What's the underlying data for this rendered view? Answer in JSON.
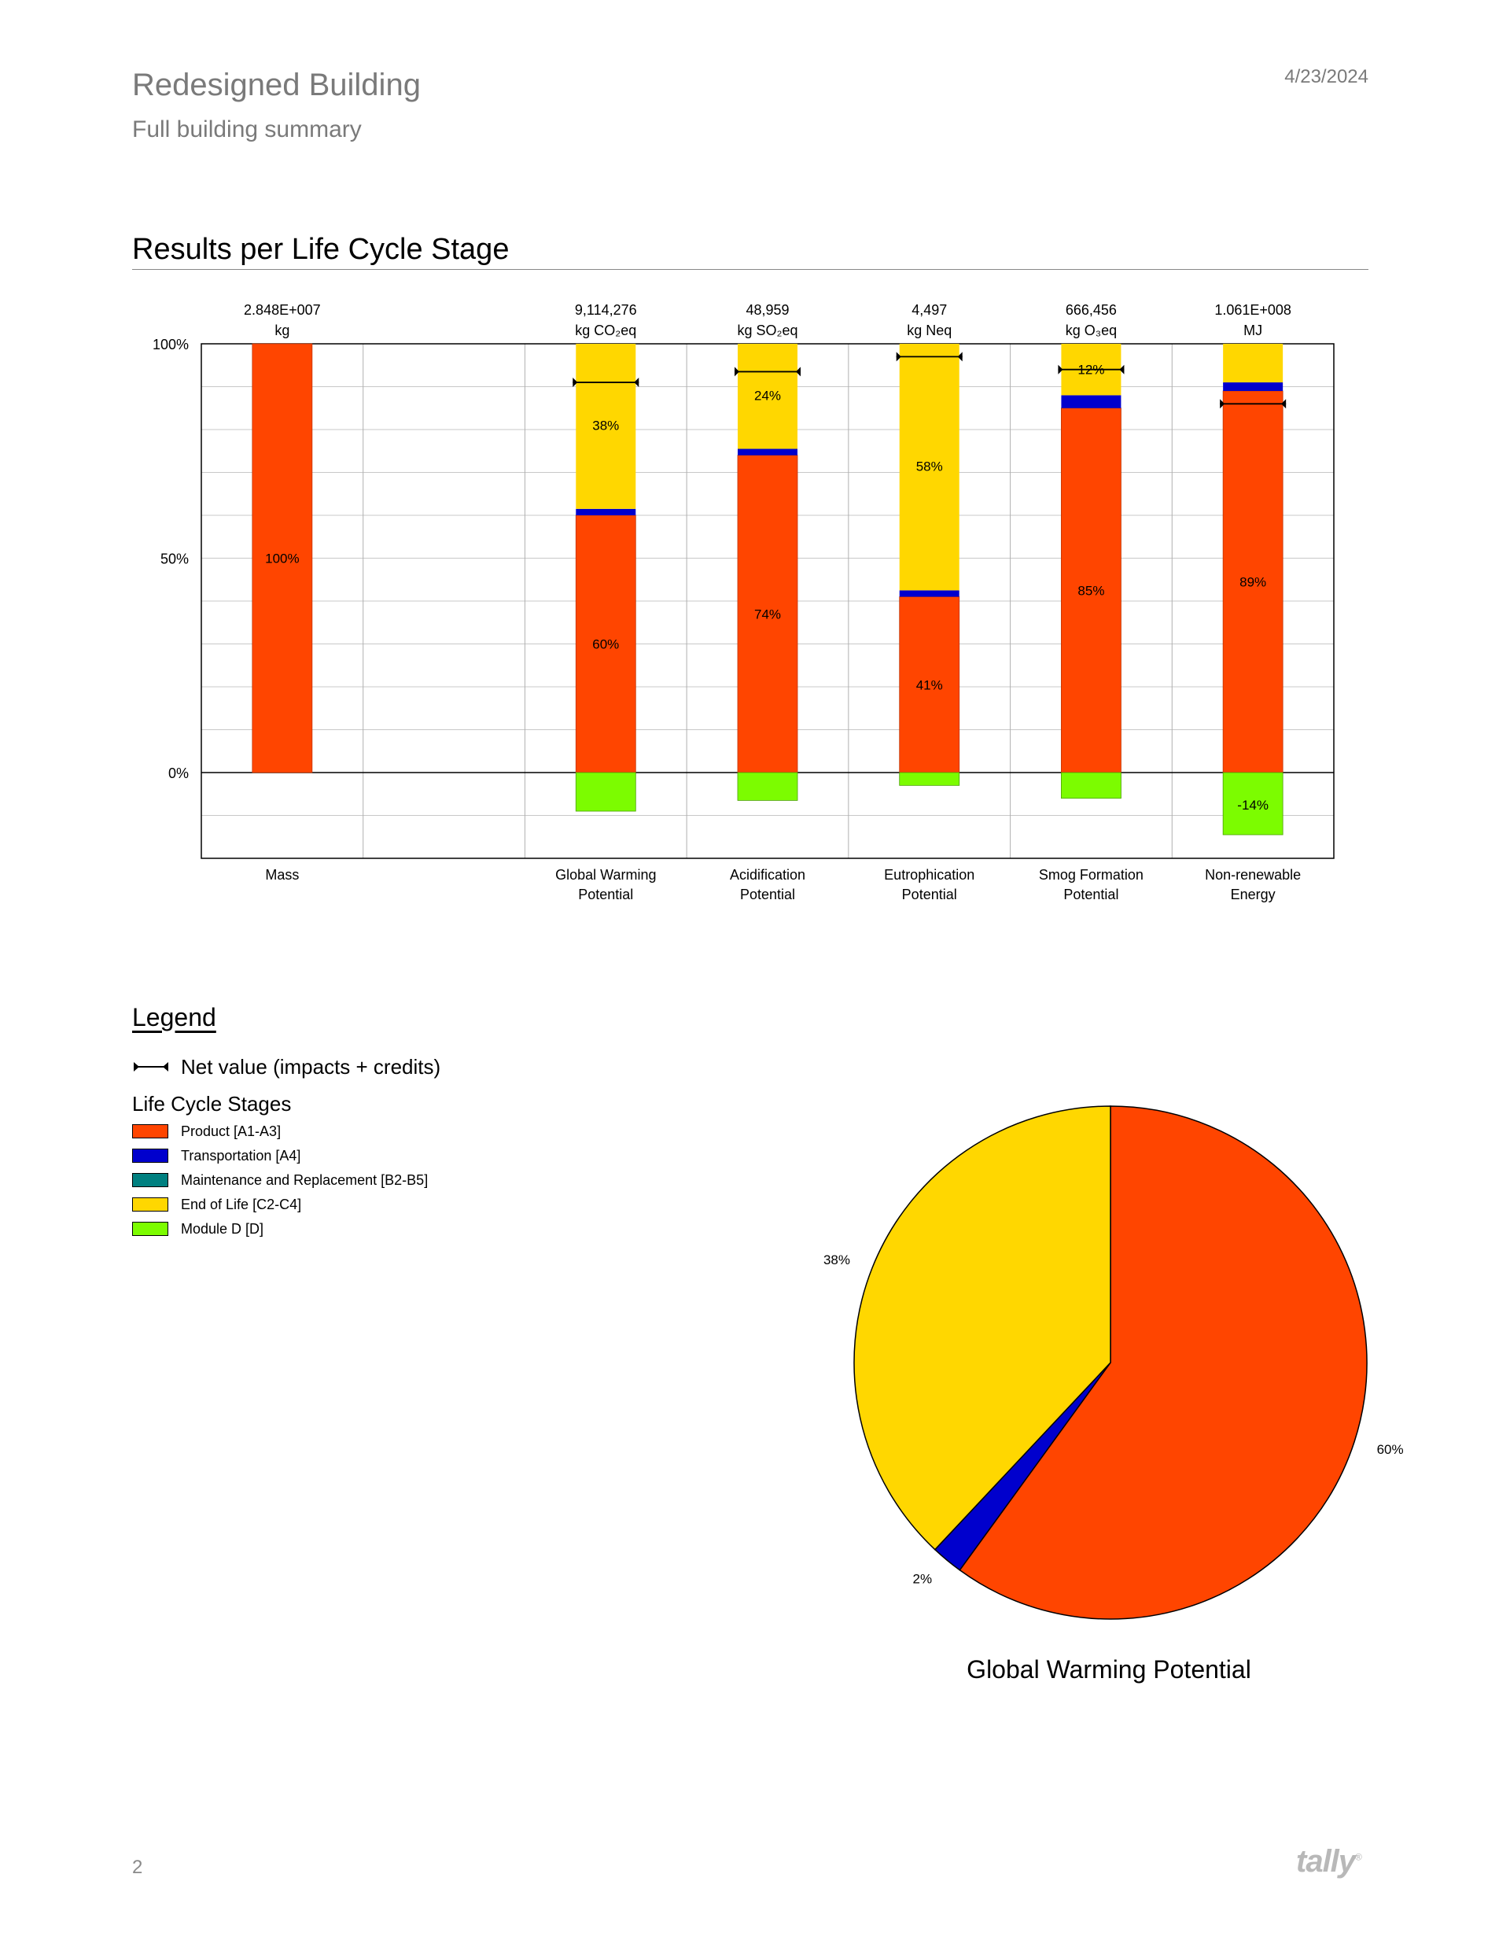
{
  "header": {
    "title": "Redesigned Building",
    "subtitle": "Full building summary",
    "date": "4/23/2024"
  },
  "section": {
    "title": "Results per Life Cycle Stage"
  },
  "legend": {
    "title": "Legend",
    "net_label": "Net value (impacts + credits)",
    "stages_title": "Life Cycle Stages",
    "items": [
      {
        "label": "Product [A1-A3]",
        "color": "#FF4500"
      },
      {
        "label": "Transportation [A4]",
        "color": "#0000CD"
      },
      {
        "label": "Maintenance and Replacement [B2-B5]",
        "color": "#008080"
      },
      {
        "label": "End of Life [C2-C4]",
        "color": "#FFD700"
      },
      {
        "label": "Module D [D]",
        "color": "#7CFC00"
      }
    ]
  },
  "footer": {
    "page_number": "2",
    "brand": "tally",
    "brand_mark": "®"
  },
  "chart_data": [
    {
      "type": "bar",
      "stacked": true,
      "ylim": [
        -0.2,
        1.0
      ],
      "y_ticks": [
        {
          "value": 1.0,
          "label": "100%"
        },
        {
          "value": 0.5,
          "label": "50%"
        },
        {
          "value": 0.0,
          "label": "0%"
        }
      ],
      "grid": true,
      "stage_colors": {
        "product": "#FF4500",
        "transport": "#0000CD",
        "maintenance": "#008080",
        "eol": "#FFD700",
        "module_d": "#7CFC00"
      },
      "categories": [
        {
          "name": [
            "Mass"
          ],
          "total": [
            "2.848E+007",
            "kg"
          ],
          "slot": 0,
          "segments": {
            "product": 1.0
          },
          "module_d": 0,
          "net": null,
          "labels": [
            {
              "text": "100%",
              "y": 0.5
            }
          ]
        },
        {
          "name": [
            "Global Warming",
            "Potential"
          ],
          "total": [
            "9,114,276",
            "kg CO₂eq"
          ],
          "slot": 2,
          "segments": {
            "product": 0.6,
            "transport": 0.015,
            "eol": 0.385
          },
          "module_d": -0.09,
          "net": 0.91,
          "labels": [
            {
              "text": "60%",
              "y": 0.3
            },
            {
              "text": "38%",
              "y": 0.81
            }
          ]
        },
        {
          "name": [
            "Acidification",
            "Potential"
          ],
          "total": [
            "48,959",
            "kg SO₂eq"
          ],
          "slot": 3,
          "segments": {
            "product": 0.74,
            "transport": 0.015,
            "eol": 0.245
          },
          "module_d": -0.065,
          "net": 0.935,
          "labels": [
            {
              "text": "74%",
              "y": 0.37
            },
            {
              "text": "24%",
              "y": 0.88
            }
          ]
        },
        {
          "name": [
            "Eutrophication",
            "Potential"
          ],
          "total": [
            "4,497",
            "kg Neq"
          ],
          "slot": 4,
          "segments": {
            "product": 0.41,
            "transport": 0.015,
            "eol": 0.575
          },
          "module_d": -0.03,
          "net": 0.97,
          "labels": [
            {
              "text": "41%",
              "y": 0.205
            },
            {
              "text": "58%",
              "y": 0.715
            }
          ]
        },
        {
          "name": [
            "Smog Formation",
            "Potential"
          ],
          "total": [
            "666,456",
            "kg O₃eq"
          ],
          "slot": 5,
          "segments": {
            "product": 0.85,
            "transport": 0.03,
            "eol": 0.12
          },
          "module_d": -0.06,
          "net": 0.94,
          "labels": [
            {
              "text": "85%",
              "y": 0.425
            },
            {
              "text": "12%",
              "y": 0.94
            }
          ]
        },
        {
          "name": [
            "Non-renewable",
            "Energy"
          ],
          "total": [
            "1.061E+008",
            "MJ"
          ],
          "slot": 6,
          "segments": {
            "product": 0.89,
            "transport": 0.02,
            "eol": 0.09
          },
          "module_d": -0.145,
          "net": 0.86,
          "labels": [
            {
              "text": "89%",
              "y": 0.445
            },
            {
              "text": "-14%",
              "y": -0.075
            }
          ]
        }
      ]
    },
    {
      "type": "pie",
      "title": "Global Warming Potential",
      "slices": [
        {
          "stage": "Product [A1-A3]",
          "value": 0.6,
          "label": "60%",
          "color": "#FF4500"
        },
        {
          "stage": "Transportation [A4]",
          "value": 0.02,
          "label": "2%",
          "color": "#0000CD"
        },
        {
          "stage": "End of Life [C2-C4]",
          "value": 0.38,
          "label": "38%",
          "color": "#FFD700"
        }
      ]
    }
  ]
}
